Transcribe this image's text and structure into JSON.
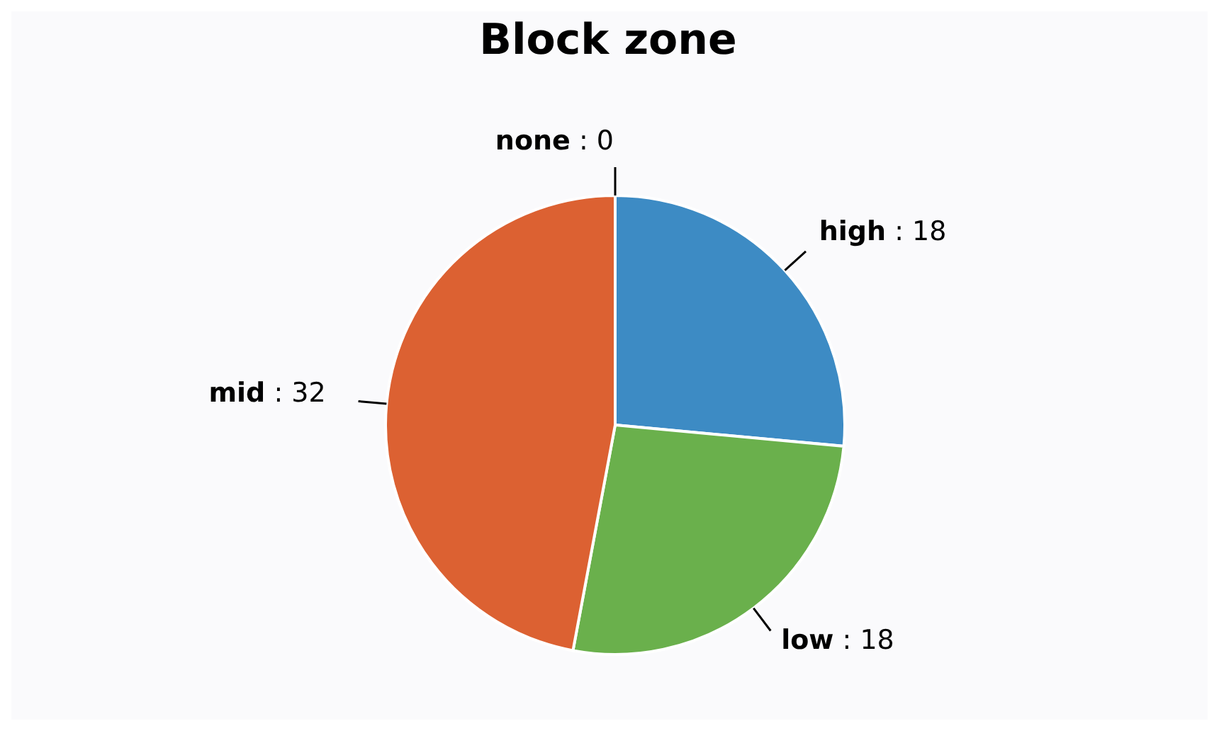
{
  "chart_data": {
    "type": "pie",
    "title": "Block zone",
    "categories": [
      "none",
      "high",
      "low",
      "mid"
    ],
    "values": [
      0,
      18,
      18,
      32
    ],
    "value_labels": [
      ": 0",
      ": 18",
      ": 18",
      ": 32"
    ],
    "colors": [
      "#8e6bbf",
      "#3d8bc4",
      "#6ab04c",
      "#dc6132"
    ],
    "data_labels": true
  }
}
